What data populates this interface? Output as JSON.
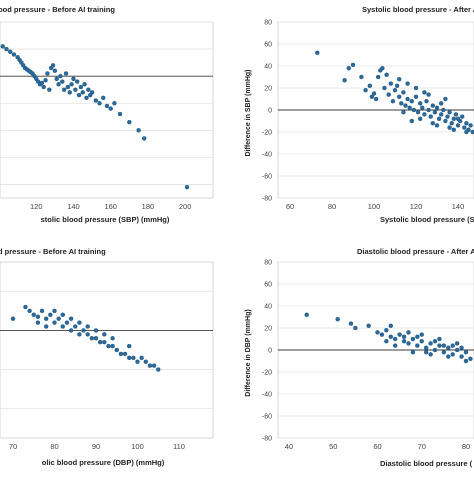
{
  "chart_data": [
    {
      "panel": "top-left",
      "type": "scatter",
      "title": "lood pressure - Before AI training",
      "xlabel": "stolic blood pressure (SBP) (mmHg)",
      "ylabel": "",
      "x_ticks": [
        "120",
        "140",
        "160",
        "180",
        "200"
      ],
      "y_ticks": [],
      "grid": "horizontal",
      "reference_line": 0,
      "marker_color": "#2b6a9b",
      "series": [
        {
          "points": [
            [
              92,
              32
            ],
            [
              95,
              30
            ],
            [
              98,
              28
            ],
            [
              100,
              26
            ],
            [
              102,
              22
            ],
            [
              104,
              20
            ],
            [
              106,
              18
            ],
            [
              108,
              16
            ],
            [
              110,
              14
            ],
            [
              111,
              12
            ],
            [
              112,
              10
            ],
            [
              113,
              8
            ],
            [
              114,
              6
            ],
            [
              115,
              5
            ],
            [
              116,
              4
            ],
            [
              117,
              3
            ],
            [
              118,
              2
            ],
            [
              119,
              0
            ],
            [
              120,
              -2
            ],
            [
              121,
              -4
            ],
            [
              122,
              -6
            ],
            [
              123,
              -5
            ],
            [
              124,
              -8
            ],
            [
              125,
              -3
            ],
            [
              126,
              2
            ],
            [
              127,
              -10
            ],
            [
              128,
              6
            ],
            [
              129,
              8
            ],
            [
              130,
              4
            ],
            [
              131,
              -2
            ],
            [
              132,
              -6
            ],
            [
              133,
              0
            ],
            [
              134,
              -4
            ],
            [
              135,
              -10
            ],
            [
              136,
              2
            ],
            [
              137,
              -8
            ],
            [
              138,
              -12
            ],
            [
              139,
              -6
            ],
            [
              140,
              -2
            ],
            [
              141,
              -10
            ],
            [
              142,
              -4
            ],
            [
              143,
              -14
            ],
            [
              144,
              -8
            ],
            [
              145,
              -12
            ],
            [
              146,
              -6
            ],
            [
              147,
              -16
            ],
            [
              148,
              -10
            ],
            [
              149,
              -14
            ],
            [
              150,
              -12
            ],
            [
              152,
              -18
            ],
            [
              154,
              -20
            ],
            [
              156,
              -16
            ],
            [
              158,
              -22
            ],
            [
              160,
              -24
            ],
            [
              162,
              -20
            ],
            [
              165,
              -28
            ],
            [
              170,
              -34
            ],
            [
              175,
              -40
            ],
            [
              178,
              -46
            ],
            [
              201,
              -82
            ]
          ]
        }
      ]
    },
    {
      "panel": "top-right",
      "type": "scatter",
      "title": "Systolic blood pressure - After A",
      "xlabel": "Systolic blood pressure (S",
      "ylabel": "Difference in SBP (mmHg)",
      "x_ticks": [
        60,
        80,
        100,
        120,
        140
      ],
      "ylim": [
        -80,
        80
      ],
      "y_ticks": [
        80,
        60,
        40,
        20,
        0,
        -20,
        -40,
        -60,
        -80
      ],
      "grid": "horizontal",
      "reference_line": 0,
      "marker_color": "#2b6a9b",
      "series": [
        {
          "points": [
            [
              73,
              52
            ],
            [
              86,
              27
            ],
            [
              88,
              38
            ],
            [
              90,
              41
            ],
            [
              94,
              30
            ],
            [
              96,
              18
            ],
            [
              98,
              22
            ],
            [
              99,
              12
            ],
            [
              100,
              15
            ],
            [
              101,
              10
            ],
            [
              102,
              30
            ],
            [
              103,
              36
            ],
            [
              104,
              38
            ],
            [
              105,
              20
            ],
            [
              106,
              32
            ],
            [
              107,
              14
            ],
            [
              108,
              24
            ],
            [
              109,
              8
            ],
            [
              110,
              18
            ],
            [
              111,
              22
            ],
            [
              112,
              12
            ],
            [
              113,
              6
            ],
            [
              114,
              16
            ],
            [
              115,
              4
            ],
            [
              116,
              10
            ],
            [
              117,
              2
            ],
            [
              118,
              8
            ],
            [
              119,
              0
            ],
            [
              120,
              12
            ],
            [
              121,
              -2
            ],
            [
              122,
              6
            ],
            [
              123,
              2
            ],
            [
              124,
              -4
            ],
            [
              125,
              8
            ],
            [
              126,
              0
            ],
            [
              127,
              -6
            ],
            [
              128,
              4
            ],
            [
              129,
              -2
            ],
            [
              130,
              2
            ],
            [
              131,
              -8
            ],
            [
              132,
              -4
            ],
            [
              133,
              0
            ],
            [
              134,
              -10
            ],
            [
              135,
              -6
            ],
            [
              136,
              -2
            ],
            [
              137,
              -12
            ],
            [
              138,
              -8
            ],
            [
              139,
              -4
            ],
            [
              140,
              -14
            ],
            [
              141,
              -10
            ],
            [
              142,
              -6
            ],
            [
              143,
              -16
            ],
            [
              144,
              -12
            ],
            [
              145,
              -18
            ],
            [
              146,
              -14
            ],
            [
              147,
              -20
            ],
            [
              148,
              -24
            ],
            [
              149,
              -16
            ],
            [
              150,
              -22
            ],
            [
              112,
              28
            ],
            [
              114,
              -2
            ],
            [
              118,
              -10
            ],
            [
              122,
              -8
            ],
            [
              126,
              14
            ],
            [
              130,
              -14
            ],
            [
              134,
              10
            ],
            [
              138,
              -18
            ],
            [
              120,
              20
            ],
            [
              116,
              24
            ],
            [
              124,
              16
            ],
            [
              128,
              -12
            ],
            [
              132,
              6
            ],
            [
              136,
              -16
            ],
            [
              140,
              -8
            ],
            [
              144,
              -20
            ]
          ]
        }
      ]
    },
    {
      "panel": "bottom-left",
      "type": "scatter",
      "title": "d pressure - Before AI training",
      "xlabel": "olic blood pressure (DBP) (mmHg)",
      "ylabel": "",
      "x_ticks": [
        "70",
        "80",
        "90",
        "100",
        "110"
      ],
      "y_ticks": [],
      "grid": "horizontal",
      "reference_line": 0,
      "marker_color": "#2b6a9b",
      "series": [
        {
          "points": [
            [
              60,
              26
            ],
            [
              62,
              22
            ],
            [
              63,
              14
            ],
            [
              65,
              10
            ],
            [
              67,
              8
            ],
            [
              70,
              6
            ],
            [
              73,
              12
            ],
            [
              74,
              10
            ],
            [
              75,
              8
            ],
            [
              76,
              7
            ],
            [
              77,
              10
            ],
            [
              78,
              6
            ],
            [
              79,
              8
            ],
            [
              80,
              4
            ],
            [
              81,
              6
            ],
            [
              82,
              2
            ],
            [
              83,
              4
            ],
            [
              84,
              0
            ],
            [
              85,
              2
            ],
            [
              86,
              -2
            ],
            [
              87,
              0
            ],
            [
              88,
              -2
            ],
            [
              89,
              -4
            ],
            [
              90,
              -4
            ],
            [
              91,
              -6
            ],
            [
              92,
              -6
            ],
            [
              93,
              -8
            ],
            [
              94,
              -8
            ],
            [
              95,
              -10
            ],
            [
              96,
              -12
            ],
            [
              97,
              -12
            ],
            [
              98,
              -14
            ],
            [
              99,
              -14
            ],
            [
              100,
              -16
            ],
            [
              101,
              -14
            ],
            [
              102,
              -16
            ],
            [
              103,
              -18
            ],
            [
              104,
              -18
            ],
            [
              105,
              -20
            ],
            [
              78,
              2
            ],
            [
              82,
              8
            ],
            [
              86,
              4
            ],
            [
              90,
              0
            ],
            [
              94,
              -4
            ],
            [
              98,
              -8
            ],
            [
              76,
              4
            ],
            [
              80,
              10
            ],
            [
              84,
              6
            ],
            [
              88,
              2
            ],
            [
              92,
              -2
            ]
          ]
        }
      ]
    },
    {
      "panel": "bottom-right",
      "type": "scatter",
      "title": "Diastolic blood pressure - After A",
      "xlabel": "Diastolic blood pressure (",
      "ylabel": "Difference in DBP (mmHg)",
      "x_ticks": [
        40,
        50,
        60,
        70,
        80
      ],
      "ylim": [
        -80,
        80
      ],
      "y_ticks": [
        80,
        60,
        40,
        20,
        0,
        -20,
        -40,
        -60,
        -80
      ],
      "grid": "horizontal",
      "reference_line": 0,
      "marker_color": "#2b6a9b",
      "series": [
        {
          "points": [
            [
              44,
              32
            ],
            [
              51,
              28
            ],
            [
              54,
              24
            ],
            [
              55,
              20
            ],
            [
              58,
              22
            ],
            [
              60,
              16
            ],
            [
              61,
              14
            ],
            [
              62,
              18
            ],
            [
              63,
              12
            ],
            [
              64,
              10
            ],
            [
              65,
              14
            ],
            [
              66,
              8
            ],
            [
              67,
              6
            ],
            [
              68,
              10
            ],
            [
              69,
              4
            ],
            [
              70,
              8
            ],
            [
              71,
              2
            ],
            [
              72,
              6
            ],
            [
              73,
              0
            ],
            [
              74,
              4
            ],
            [
              75,
              -2
            ],
            [
              76,
              2
            ],
            [
              77,
              -4
            ],
            [
              78,
              0
            ],
            [
              79,
              -6
            ],
            [
              80,
              -2
            ],
            [
              81,
              -8
            ],
            [
              82,
              -4
            ],
            [
              83,
              -10
            ],
            [
              84,
              -6
            ],
            [
              63,
              22
            ],
            [
              66,
              12
            ],
            [
              68,
              -2
            ],
            [
              70,
              14
            ],
            [
              72,
              -4
            ],
            [
              74,
              10
            ],
            [
              76,
              -6
            ],
            [
              78,
              6
            ],
            [
              80,
              -10
            ],
            [
              82,
              2
            ],
            [
              64,
              4
            ],
            [
              62,
              8
            ],
            [
              69,
              12
            ],
            [
              73,
              8
            ],
            [
              77,
              4
            ],
            [
              71,
              -2
            ],
            [
              75,
              4
            ],
            [
              79,
              2
            ],
            [
              83,
              -2
            ],
            [
              67,
              16
            ]
          ]
        }
      ]
    }
  ]
}
